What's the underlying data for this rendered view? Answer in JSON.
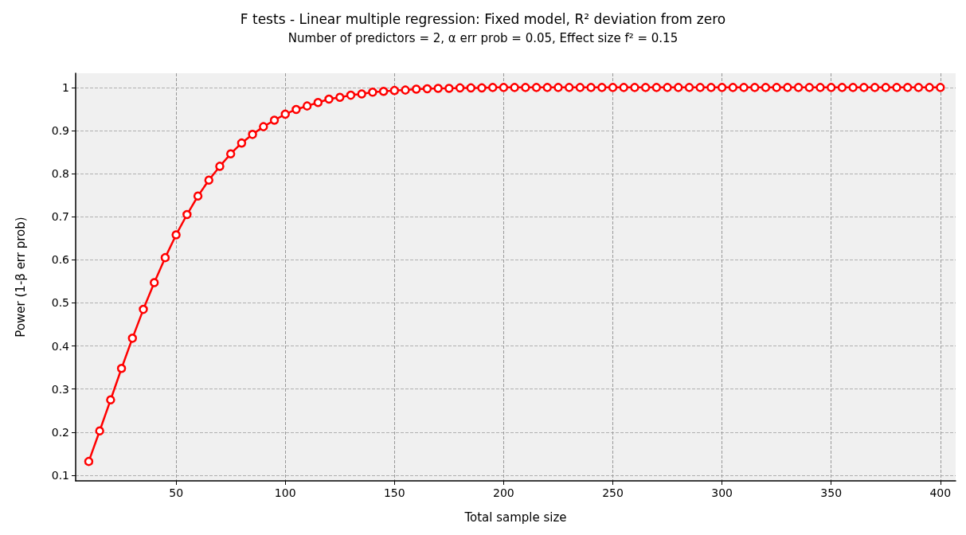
{
  "chart_data": {
    "type": "line",
    "title": "F tests - Linear multiple regression: Fixed model, R² deviation from zero",
    "subtitle": "Number of predictors = 2, α err prob = 0.05, Effect size f² = 0.15",
    "xlabel": "Total sample size",
    "ylabel": "Power (1-β err prob)",
    "x": [
      10,
      15,
      20,
      25,
      30,
      35,
      40,
      45,
      50,
      55,
      60,
      65,
      70,
      75,
      80,
      85,
      90,
      95,
      100,
      105,
      110,
      115,
      120,
      125,
      130,
      135,
      140,
      145,
      150,
      155,
      160,
      165,
      170,
      175,
      180,
      185,
      190,
      195,
      200,
      205,
      210,
      215,
      220,
      225,
      230,
      235,
      240,
      245,
      250,
      255,
      260,
      265,
      270,
      275,
      280,
      285,
      290,
      295,
      300,
      305,
      310,
      315,
      320,
      325,
      330,
      335,
      340,
      345,
      350,
      355,
      360,
      365,
      370,
      375,
      380,
      385,
      390,
      395,
      400
    ],
    "series": [
      {
        "color": "#ff0000",
        "values": [
          0.132,
          0.203,
          0.275,
          0.348,
          0.418,
          0.485,
          0.547,
          0.605,
          0.658,
          0.705,
          0.748,
          0.785,
          0.817,
          0.846,
          0.871,
          0.891,
          0.909,
          0.924,
          0.938,
          0.949,
          0.957,
          0.965,
          0.973,
          0.977,
          0.982,
          0.985,
          0.989,
          0.991,
          0.993,
          0.994,
          0.996,
          0.997,
          0.998,
          0.998,
          0.999,
          0.999,
          0.999,
          1,
          1,
          1,
          1,
          1,
          1,
          1,
          1,
          1,
          1,
          1,
          1,
          1,
          1,
          1,
          1,
          1,
          1,
          1,
          1,
          1,
          1,
          1,
          1,
          1,
          1,
          1,
          1,
          1,
          1,
          1,
          1,
          1,
          1,
          1,
          1,
          1,
          1,
          1,
          1,
          1,
          1
        ]
      }
    ],
    "xlim": [
      4,
      407
    ],
    "xticks": [
      50,
      100,
      150,
      200,
      250,
      300,
      350,
      400
    ],
    "ylim": [
      0.087,
      1.033
    ],
    "yticks": [
      0.1,
      0.2,
      0.3,
      0.4,
      0.5,
      0.6,
      0.7,
      0.8,
      0.9,
      1
    ],
    "grid": true,
    "marker": "circle",
    "line_style": "solid"
  }
}
